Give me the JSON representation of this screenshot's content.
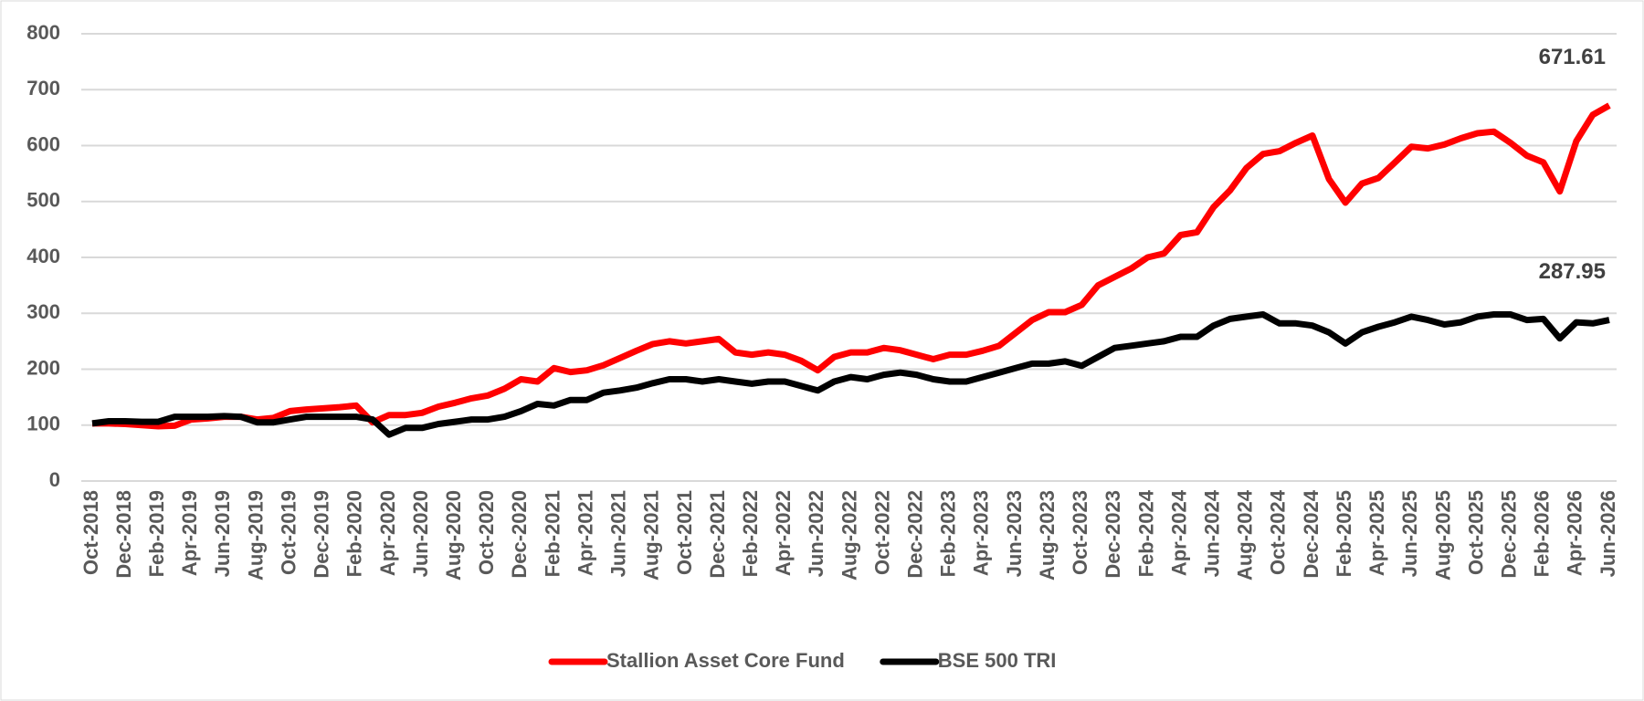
{
  "chart_data": {
    "type": "line",
    "categories": [
      "Oct-2018",
      null,
      "Dec-2018",
      null,
      "Feb-2019",
      null,
      "Apr-2019",
      null,
      "Jun-2019",
      null,
      "Aug-2019",
      null,
      "Oct-2019",
      null,
      "Dec-2019",
      null,
      "Feb-2020",
      null,
      "Apr-2020",
      null,
      "Jun-2020",
      null,
      "Aug-2020",
      null,
      "Oct-2020",
      null,
      "Dec-2020",
      null,
      "Feb-2021",
      null,
      "Apr-2021",
      null,
      "Jun-2021",
      null,
      "Aug-2021",
      null,
      "Oct-2021",
      null,
      "Dec-2021",
      null,
      "Feb-2022",
      null,
      "Apr-2022",
      null,
      "Jun-2022",
      null,
      "Aug-2022",
      null,
      "Oct-2022",
      null,
      "Dec-2022",
      null,
      "Feb-2023",
      null,
      "Apr-2023",
      null,
      "Jun-2023",
      null,
      "Aug-2023",
      null,
      "Oct-2023",
      null,
      "Dec-2023",
      null,
      "Feb-2024",
      null,
      "Apr-2024",
      null,
      "Jun-2024",
      null,
      "Aug-2024",
      null,
      "Oct-2024",
      null,
      "Dec-2024",
      null,
      "Feb-2025",
      null,
      "Apr-2025",
      null,
      "Jun-2025",
      null,
      "Aug-2025",
      null,
      "Oct-2025",
      null,
      "Dec-2025",
      null,
      "Feb-2026",
      null,
      "Apr-2026",
      null,
      "Jun-2026"
    ],
    "series": [
      {
        "name": "Stallion Asset Core Fund",
        "color": "#ff0000",
        "values": [
          103,
          103,
          102,
          100,
          98,
          99,
          110,
          112,
          115,
          115,
          110,
          113,
          125,
          128,
          130,
          132,
          135,
          105,
          118,
          118,
          122,
          133,
          140,
          148,
          153,
          165,
          182,
          178,
          202,
          195,
          198,
          207,
          220,
          233,
          245,
          250,
          246,
          250,
          254,
          230,
          226,
          230,
          226,
          215,
          198,
          222,
          230,
          230,
          238,
          234,
          226,
          218,
          226,
          226,
          233,
          242,
          265,
          288,
          302,
          302,
          315,
          350,
          365,
          380,
          400,
          407,
          440,
          445,
          490,
          520,
          560,
          585,
          590,
          605,
          618,
          540,
          498,
          532,
          542,
          570,
          598,
          595,
          602,
          613,
          622,
          625,
          605,
          582,
          570,
          518,
          608,
          655,
          671.61
        ]
      },
      {
        "name": "BSE 500 TRI",
        "color": "#000000",
        "values": [
          103,
          107,
          107,
          106,
          106,
          115,
          115,
          115,
          116,
          115,
          105,
          105,
          110,
          115,
          115,
          115,
          115,
          110,
          83,
          95,
          95,
          102,
          106,
          110,
          110,
          115,
          125,
          138,
          135,
          145,
          145,
          158,
          162,
          167,
          175,
          182,
          182,
          178,
          182,
          178,
          174,
          178,
          178,
          170,
          162,
          178,
          186,
          182,
          190,
          194,
          190,
          182,
          178,
          178,
          186,
          194,
          202,
          210,
          210,
          214,
          206,
          222,
          238,
          242,
          246,
          250,
          258,
          258,
          278,
          290,
          294,
          298,
          282,
          282,
          278,
          266,
          246,
          266,
          276,
          284,
          294,
          288,
          280,
          284,
          294,
          298,
          298,
          288,
          290,
          255,
          284,
          282,
          287.95
        ]
      }
    ],
    "ylim": [
      0,
      800
    ],
    "yticks": [
      0,
      100,
      200,
      300,
      400,
      500,
      600,
      700,
      800
    ],
    "grid": true,
    "end_labels": true,
    "legend": "bottom"
  }
}
